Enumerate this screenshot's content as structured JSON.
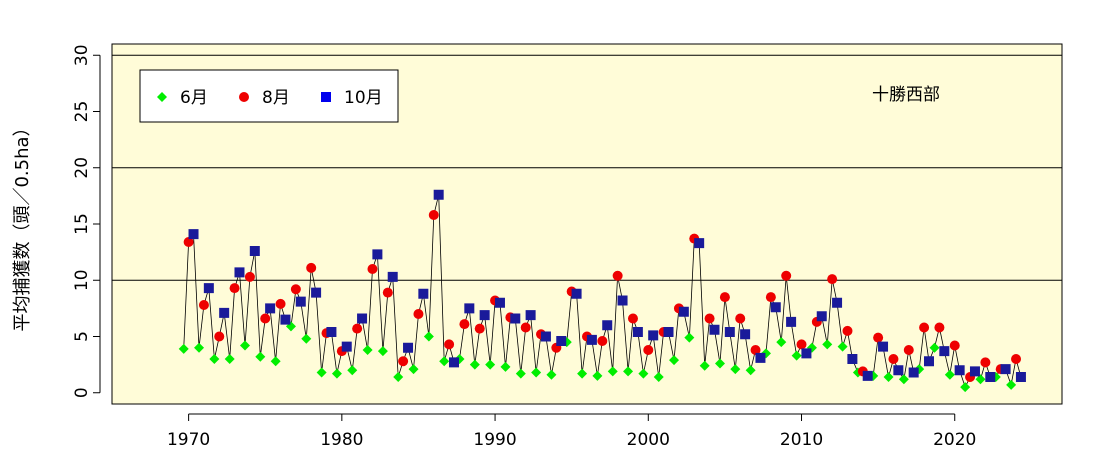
{
  "chart_data": {
    "type": "line",
    "title": "",
    "xlabel": "",
    "ylabel": "平均捕獲数（頭／0.5ha）",
    "annotation": "十勝西部",
    "xlim": [
      1965,
      2027
    ],
    "ylim": [
      -1,
      31
    ],
    "x_ticks": [
      1970,
      1980,
      1990,
      2000,
      2010,
      2020
    ],
    "y_ticks": [
      0,
      5,
      10,
      15,
      20,
      25,
      30
    ],
    "reference_lines_y": [
      10,
      20,
      30
    ],
    "background_color": "#fffcd8",
    "legend_position": "top-left",
    "x": [
      1970,
      1971,
      1972,
      1973,
      1974,
      1975,
      1976,
      1977,
      1978,
      1979,
      1980,
      1981,
      1982,
      1983,
      1984,
      1985,
      1986,
      1987,
      1988,
      1989,
      1990,
      1991,
      1992,
      1993,
      1994,
      1995,
      1996,
      1997,
      1998,
      1999,
      2000,
      2001,
      2002,
      2003,
      2004,
      2005,
      2006,
      2007,
      2008,
      2009,
      2010,
      2011,
      2012,
      2013,
      2014,
      2015,
      2016,
      2017,
      2018,
      2019,
      2020,
      2021,
      2022,
      2023,
      2024
    ],
    "series": [
      {
        "name": "6月",
        "color": "#00ee00",
        "marker": "diamond",
        "values": [
          3.9,
          4.0,
          3.0,
          3.0,
          4.2,
          3.2,
          2.8,
          5.9,
          4.8,
          1.8,
          1.7,
          2.0,
          3.8,
          3.7,
          1.4,
          2.1,
          5.0,
          2.8,
          3.0,
          2.5,
          2.5,
          2.3,
          1.7,
          1.8,
          1.6,
          4.5,
          1.7,
          1.5,
          1.9,
          1.9,
          1.7,
          1.4,
          2.9,
          4.9,
          2.4,
          2.6,
          2.1,
          2.0,
          3.5,
          4.5,
          3.3,
          4.0,
          4.3,
          4.1,
          1.8,
          1.5,
          1.4,
          1.2,
          2.1,
          4.0,
          1.6,
          0.5,
          1.2,
          1.4,
          0.7
        ]
      },
      {
        "name": "8月",
        "color": "#ee0000",
        "marker": "circle",
        "values": [
          13.4,
          7.8,
          5.0,
          9.3,
          10.3,
          6.6,
          7.9,
          9.2,
          11.1,
          5.3,
          3.7,
          5.7,
          11.0,
          8.9,
          2.8,
          7.0,
          15.8,
          4.3,
          6.1,
          5.7,
          8.2,
          6.7,
          5.8,
          5.2,
          4.0,
          9.0,
          5.0,
          4.6,
          10.4,
          6.6,
          3.8,
          5.4,
          7.5,
          13.7,
          6.6,
          8.5,
          6.6,
          3.8,
          8.5,
          10.4,
          4.3,
          6.3,
          10.1,
          5.5,
          1.9,
          4.9,
          3.0,
          3.8,
          5.8,
          5.8,
          4.2,
          1.4,
          2.7,
          2.1,
          3.0
        ]
      },
      {
        "name": "10月",
        "color": "#0000ee",
        "marker": "square",
        "values": [
          14.1,
          9.3,
          7.1,
          10.7,
          12.6,
          7.5,
          6.5,
          8.1,
          8.9,
          5.4,
          4.1,
          6.6,
          12.3,
          10.3,
          4.0,
          8.8,
          17.6,
          2.7,
          7.5,
          6.9,
          8.0,
          6.6,
          6.9,
          5.0,
          4.6,
          8.8,
          4.7,
          6.0,
          8.2,
          5.4,
          5.1,
          5.4,
          7.2,
          13.3,
          5.6,
          5.4,
          5.2,
          3.1,
          7.6,
          6.3,
          3.5,
          6.8,
          8.0,
          3.0,
          1.5,
          4.1,
          2.0,
          1.8,
          2.8,
          3.7,
          2.0,
          1.9,
          1.4,
          2.1,
          1.4
        ]
      }
    ]
  }
}
